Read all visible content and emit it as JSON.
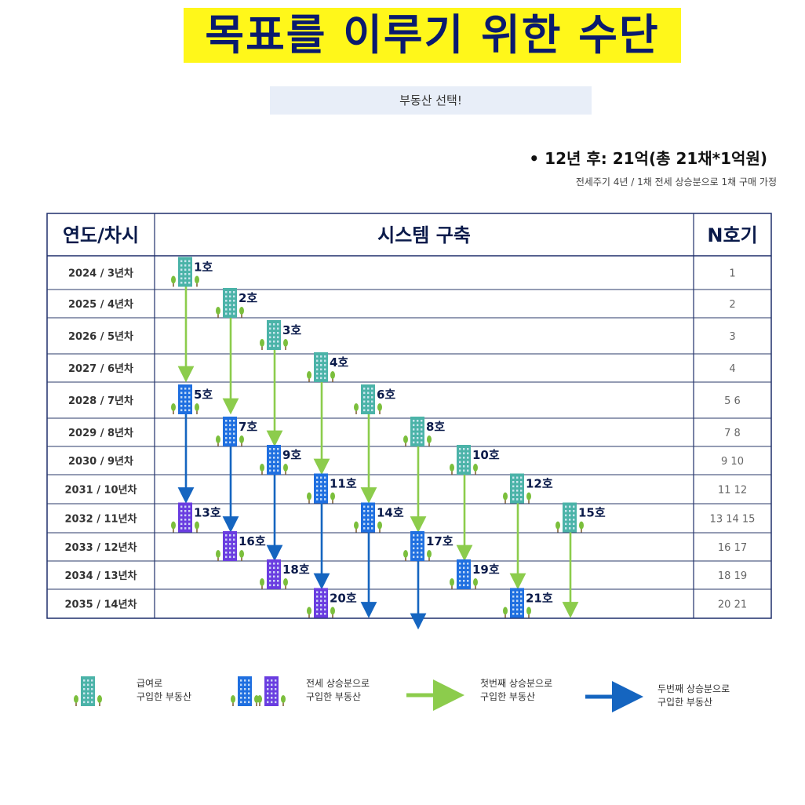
{
  "title": "목표를 이루기 위한 수단",
  "subtitle": "부동산 선택!",
  "goal": "• 12년 후: 21억(총 21채*1억원)",
  "goal_note": "전세주기 4년 / 1채 전세 상승분으로 1채 구매 가정",
  "table": {
    "headers": [
      "연도/차시",
      "시스템 구축",
      "N호기"
    ],
    "rows": [
      {
        "year": "2024 / 3년차",
        "n": "1"
      },
      {
        "year": "2025 / 4년차",
        "n": "2"
      },
      {
        "year": "2026 / 5년차",
        "n": "3"
      },
      {
        "year": "2027 / 6년차",
        "n": "4"
      },
      {
        "year": "2028 / 7년차",
        "n": "5 6"
      },
      {
        "year": "2029 / 8년차",
        "n": "7 8"
      },
      {
        "year": "2030 / 9년차",
        "n": "9 10"
      },
      {
        "year": "2031 / 10년차",
        "n": "11 12"
      },
      {
        "year": "2032 / 11년차",
        "n": "13 14 15"
      },
      {
        "year": "2033 / 12년차",
        "n": "16 17"
      },
      {
        "year": "2034 / 13년차",
        "n": "18 19"
      },
      {
        "year": "2035 / 14년차",
        "n": "20  21"
      }
    ]
  },
  "buildings": [
    {
      "label": "1호",
      "kind": "salary",
      "row": 0,
      "col": 0
    },
    {
      "label": "2호",
      "kind": "salary",
      "row": 1,
      "col": 1
    },
    {
      "label": "3호",
      "kind": "salary",
      "row": 2,
      "col": 2
    },
    {
      "label": "4호",
      "kind": "salary",
      "row": 3,
      "col": 3
    },
    {
      "label": "5호",
      "kind": "second",
      "row": 4,
      "col": 0
    },
    {
      "label": "6호",
      "kind": "salary",
      "row": 4,
      "col": 4
    },
    {
      "label": "7호",
      "kind": "second",
      "row": 5,
      "col": 1
    },
    {
      "label": "8호",
      "kind": "salary",
      "row": 5,
      "col": 5
    },
    {
      "label": "9호",
      "kind": "second",
      "row": 6,
      "col": 2
    },
    {
      "label": "10호",
      "kind": "salary",
      "row": 6,
      "col": 6
    },
    {
      "label": "11호",
      "kind": "second",
      "row": 7,
      "col": 3
    },
    {
      "label": "12호",
      "kind": "salary",
      "row": 7,
      "col": 7
    },
    {
      "label": "13호",
      "kind": "third",
      "row": 8,
      "col": 0
    },
    {
      "label": "14호",
      "kind": "second",
      "row": 8,
      "col": 4
    },
    {
      "label": "15호",
      "kind": "salary",
      "row": 8,
      "col": 8
    },
    {
      "label": "16호",
      "kind": "third",
      "row": 9,
      "col": 1
    },
    {
      "label": "17호",
      "kind": "second",
      "row": 9,
      "col": 5
    },
    {
      "label": "18호",
      "kind": "third",
      "row": 10,
      "col": 2
    },
    {
      "label": "19호",
      "kind": "second",
      "row": 10,
      "col": 6
    },
    {
      "label": "20호",
      "kind": "third",
      "row": 11,
      "col": 3
    },
    {
      "label": "21호",
      "kind": "second",
      "row": 11,
      "col": 7
    }
  ],
  "arrows": [
    {
      "type": "first",
      "col": 0,
      "from_row": 0,
      "to_row": 3
    },
    {
      "type": "first",
      "col": 1,
      "from_row": 1,
      "to_row": 4
    },
    {
      "type": "first",
      "col": 2,
      "from_row": 2,
      "to_row": 5
    },
    {
      "type": "first",
      "col": 3,
      "from_row": 3,
      "to_row": 6
    },
    {
      "type": "first",
      "col": 4,
      "from_row": 4,
      "to_row": 7
    },
    {
      "type": "first",
      "col": 5,
      "from_row": 5,
      "to_row": 8
    },
    {
      "type": "first",
      "col": 6,
      "from_row": 6,
      "to_row": 9
    },
    {
      "type": "first",
      "col": 7,
      "from_row": 7,
      "to_row": 10
    },
    {
      "type": "first",
      "col": 8,
      "from_row": 8,
      "to_row": 11
    },
    {
      "type": "second",
      "col": 0,
      "from_row": 4,
      "to_row": 7
    },
    {
      "type": "second",
      "col": 1,
      "from_row": 5,
      "to_row": 8
    },
    {
      "type": "second",
      "col": 2,
      "from_row": 6,
      "to_row": 9
    },
    {
      "type": "second",
      "col": 3,
      "from_row": 7,
      "to_row": 10
    },
    {
      "type": "second",
      "col": 4,
      "from_row": 8,
      "to_row": 11
    },
    {
      "type": "second",
      "col": 5,
      "from_row": 9,
      "to_row": 12
    }
  ],
  "legend": [
    {
      "kind": "salary",
      "text": [
        "급여로",
        "구입한 부동산"
      ]
    },
    {
      "kind": "jeonse",
      "text": [
        "전세 상승분으로",
        "구입한 부동산"
      ]
    },
    {
      "kind": "arrow-first",
      "text": [
        "첫번째 상승분으로",
        "구입한 부동산"
      ]
    },
    {
      "kind": "arrow-second",
      "text": [
        "두번째 상승분으로",
        "구입한 부동산"
      ]
    }
  ],
  "colors": {
    "salary": "#4bb3a8",
    "second": "#1f6fe0",
    "third": "#6a3de0",
    "arrow_first": "#8ccc4c",
    "arrow_second": "#1565c0",
    "title_bg": "#fff71a",
    "title_text": "#0a1a6e",
    "table_border": "#1e2f6b"
  }
}
